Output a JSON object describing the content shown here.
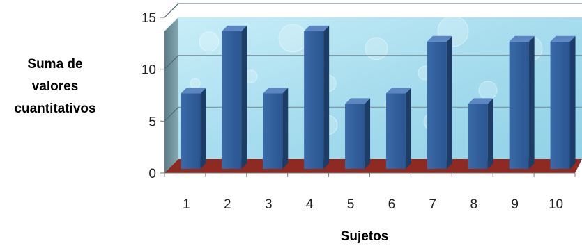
{
  "chart_data": {
    "type": "bar",
    "categories": [
      "1",
      "2",
      "3",
      "4",
      "5",
      "6",
      "7",
      "8",
      "9",
      "10"
    ],
    "values": [
      7,
      13,
      7,
      13,
      6,
      7,
      12,
      6,
      12,
      12
    ],
    "ylim": [
      0,
      15
    ],
    "yticks": [
      "0",
      "5",
      "10",
      "15"
    ],
    "ylabel_lines": [
      "Suma de",
      "valores",
      "cuantitativos"
    ],
    "xlabel": "Sujetos",
    "grid": true,
    "legend": "none",
    "colors": {
      "bar_front": "#2f5d98",
      "bar_side": "#1d3c66",
      "bar_top": "#5b86c2",
      "floor": "#8e2a22",
      "wall": "#a9dff0",
      "left_wall": "#6a8f99",
      "gridline": "#7c8f96"
    }
  }
}
